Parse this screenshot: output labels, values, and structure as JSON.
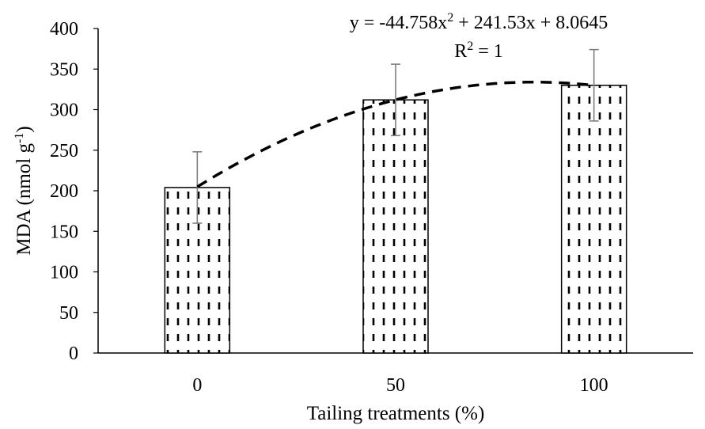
{
  "chart_data": {
    "type": "bar",
    "categories": [
      "0",
      "50",
      "100"
    ],
    "values": [
      204,
      312,
      330
    ],
    "errors": [
      44,
      44,
      44
    ],
    "xlabel": "Tailing treatments (%)",
    "ylabel": {
      "text": "MDA (nmol g",
      "superscript": "-1",
      "suffix": ")"
    },
    "ylim": [
      0,
      400
    ],
    "yticks": [
      0,
      50,
      100,
      150,
      200,
      250,
      300,
      350,
      400
    ],
    "grid": false,
    "legend": "none",
    "trendline": {
      "type": "polynomial",
      "coefficients": [
        -44.758,
        241.53,
        8.0645
      ],
      "equation": {
        "prefix": "y = -44.758x",
        "exponent": "2",
        "suffix": " + 241.53x + 8.0645"
      },
      "r_squared": {
        "prefix": "R",
        "exponent": "2",
        "suffix": " = 1"
      }
    },
    "colors": {
      "bar_fill": "#ffffff",
      "bar_outline": "#000000",
      "pattern": "#000000",
      "error_bar": "#7f7f7f",
      "trendline": "#000000"
    }
  }
}
